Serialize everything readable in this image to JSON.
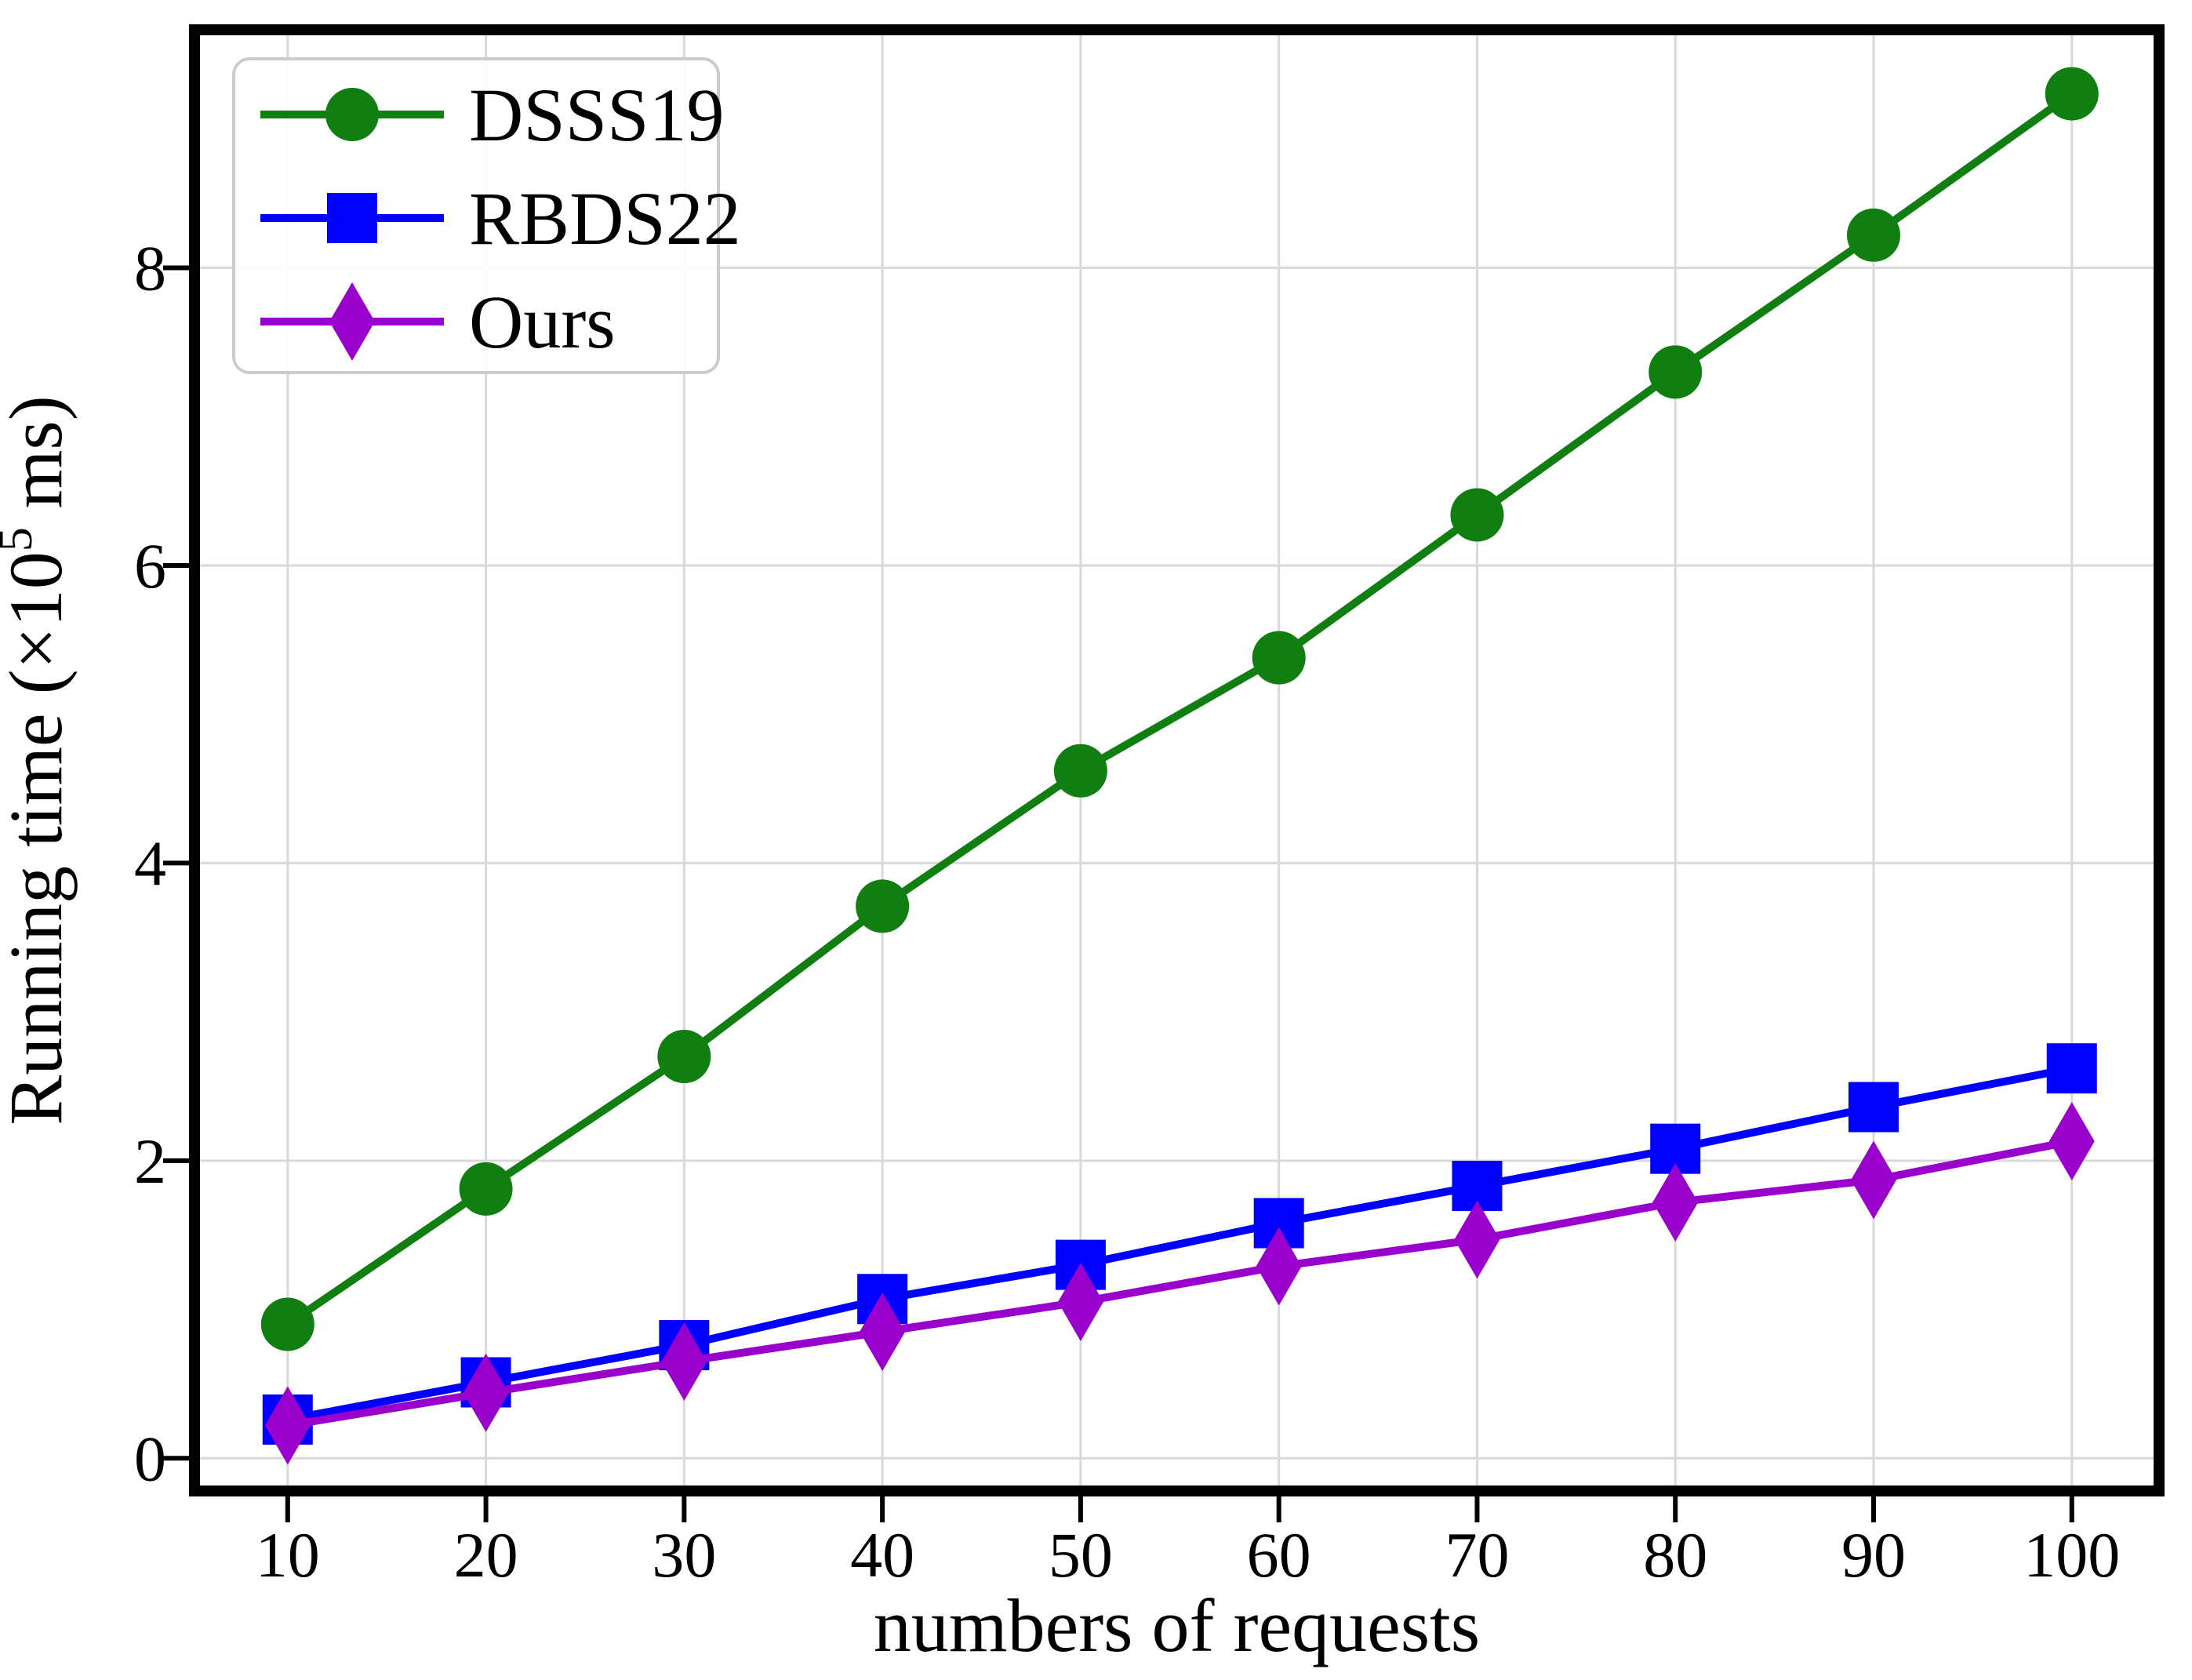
{
  "chart_data": {
    "type": "line",
    "x": [
      10,
      20,
      30,
      40,
      50,
      60,
      70,
      80,
      90,
      100
    ],
    "series": [
      {
        "name": "DSSS19",
        "color": "#107E10",
        "marker": "circle",
        "values": [
          0.9,
          1.81,
          2.7,
          3.71,
          4.62,
          5.38,
          6.34,
          7.3,
          8.22,
          9.17
        ]
      },
      {
        "name": "RBDS22",
        "color": "#0000FF",
        "marker": "square",
        "values": [
          0.26,
          0.51,
          0.76,
          1.07,
          1.3,
          1.58,
          1.83,
          2.08,
          2.36,
          2.62
        ]
      },
      {
        "name": "Ours",
        "color": "#9900CC",
        "marker": "thin-diamond",
        "values": [
          0.22,
          0.44,
          0.65,
          0.85,
          1.05,
          1.29,
          1.47,
          1.72,
          1.87,
          2.13
        ]
      }
    ],
    "title": "",
    "xlabel": "numbers of requests",
    "ylabel": "Running time (×10⁵ ms)",
    "ylabel_parts": {
      "prefix": "Running time (×10",
      "sup": "5",
      "suffix": " ms)"
    },
    "xticks": [
      10,
      20,
      30,
      40,
      50,
      60,
      70,
      80,
      90,
      100
    ],
    "yticks": [
      0,
      2,
      4,
      6,
      8
    ],
    "xlim": [
      5.3,
      104.4
    ],
    "ylim": [
      -0.22,
      9.6
    ],
    "grid": true,
    "grid_color": "#d9d9d9",
    "axis_color": "#000000",
    "legend_position": "upper-left",
    "legend_entries": [
      "DSSS19",
      "RBDS22",
      "Ours"
    ]
  }
}
